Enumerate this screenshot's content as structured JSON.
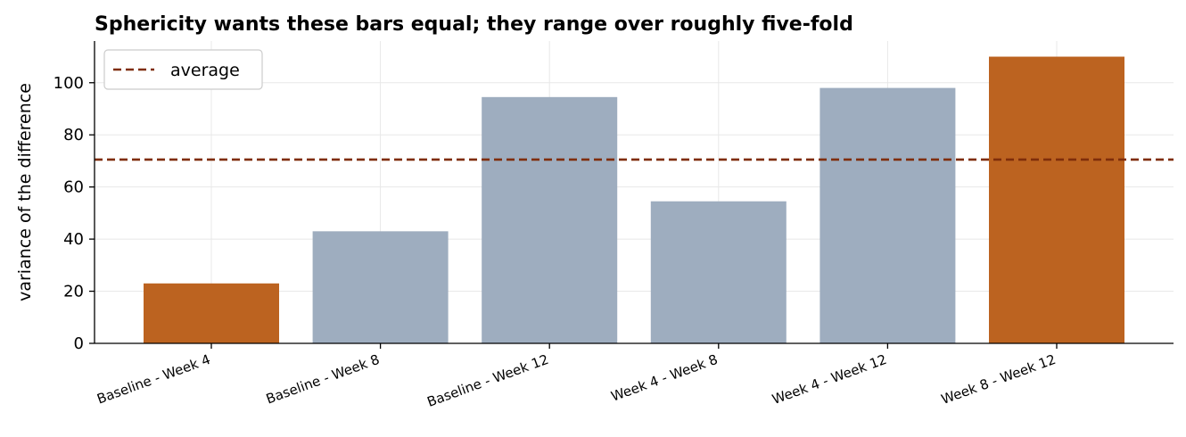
{
  "chart_data": {
    "type": "bar",
    "title": "Sphericity wants these bars equal; they range over roughly five-fold",
    "xlabel": "",
    "ylabel": "variance of the difference",
    "categories": [
      "Baseline - Week 4",
      "Baseline - Week 8",
      "Baseline - Week 12",
      "Week 4 - Week 8",
      "Week 4 - Week 12",
      "Week 8 - Week 12"
    ],
    "values": [
      23,
      43,
      94.5,
      54.5,
      98,
      110
    ],
    "highlighted": [
      true,
      false,
      false,
      false,
      false,
      true
    ],
    "ylim": [
      0,
      116
    ],
    "yticks": [
      0,
      20,
      40,
      60,
      80,
      100
    ],
    "reference_line": {
      "label": "average",
      "value": 70.5,
      "style": "dashed"
    },
    "legend_position": "top-left",
    "grid": true,
    "colors": {
      "bar_default": "#9eadbf",
      "bar_highlight": "#bc6320",
      "reference_line": "#7f2d0a",
      "grid": "#e8e8e8"
    }
  }
}
